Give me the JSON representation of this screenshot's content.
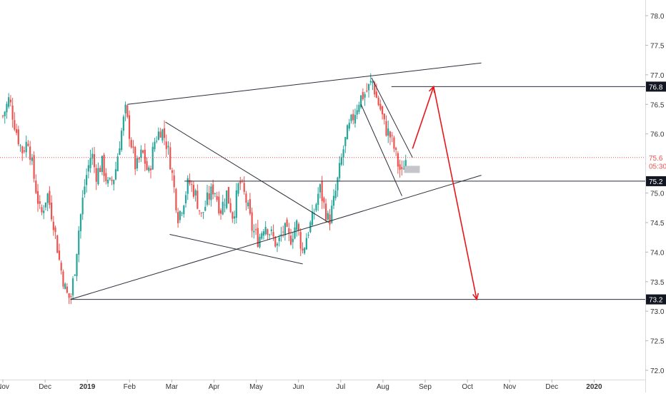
{
  "chart_data": {
    "type": "candlestick",
    "ylim": [
      71.85,
      78.15
    ],
    "y_ticks": [
      "72.0",
      "72.5",
      "73.0",
      "73.5",
      "74.0",
      "74.5",
      "75.0",
      "75.5",
      "76.0",
      "76.5",
      "77.0",
      "77.5",
      "78.0"
    ],
    "x_ticks": [
      {
        "label": "Nov",
        "month_index": 0
      },
      {
        "label": "Dec",
        "month_index": 1
      },
      {
        "label": "2019",
        "month_index": 2
      },
      {
        "label": "Feb",
        "month_index": 3
      },
      {
        "label": "Mar",
        "month_index": 4
      },
      {
        "label": "Apr",
        "month_index": 5
      },
      {
        "label": "May",
        "month_index": 6
      },
      {
        "label": "Jun",
        "month_index": 7
      },
      {
        "label": "Jul",
        "month_index": 8
      },
      {
        "label": "Aug",
        "month_index": 9
      },
      {
        "label": "Sep",
        "month_index": 10
      },
      {
        "label": "Oct",
        "month_index": 11
      },
      {
        "label": "Nov",
        "month_index": 12
      },
      {
        "label": "Dec",
        "month_index": 13
      },
      {
        "label": "2020",
        "month_index": 14
      }
    ],
    "price_path": [
      [
        0.0,
        76.3
      ],
      [
        0.15,
        76.6
      ],
      [
        0.3,
        76.1
      ],
      [
        0.45,
        75.7
      ],
      [
        0.6,
        75.9
      ],
      [
        0.75,
        75.2
      ],
      [
        0.9,
        74.6
      ],
      [
        1.05,
        75.0
      ],
      [
        1.2,
        74.5
      ],
      [
        1.35,
        73.8
      ],
      [
        1.5,
        73.3
      ],
      [
        1.6,
        73.2
      ],
      [
        1.7,
        73.7
      ],
      [
        1.8,
        74.4
      ],
      [
        1.95,
        75.2
      ],
      [
        2.1,
        75.7
      ],
      [
        2.2,
        75.3
      ],
      [
        2.35,
        75.5
      ],
      [
        2.5,
        75.1
      ],
      [
        2.65,
        75.3
      ],
      [
        2.75,
        75.8
      ],
      [
        2.9,
        76.4
      ],
      [
        3.0,
        76.0
      ],
      [
        3.15,
        75.4
      ],
      [
        3.3,
        75.7
      ],
      [
        3.45,
        75.3
      ],
      [
        3.6,
        75.9
      ],
      [
        3.75,
        76.1
      ],
      [
        3.85,
        75.9
      ],
      [
        3.95,
        75.6
      ],
      [
        4.05,
        75.1
      ],
      [
        4.15,
        74.6
      ],
      [
        4.25,
        74.8
      ],
      [
        4.4,
        75.2
      ],
      [
        4.55,
        75.0
      ],
      [
        4.7,
        74.6
      ],
      [
        4.85,
        74.9
      ],
      [
        5.0,
        75.1
      ],
      [
        5.15,
        74.7
      ],
      [
        5.3,
        75.0
      ],
      [
        5.45,
        74.6
      ],
      [
        5.6,
        75.2
      ],
      [
        5.75,
        74.9
      ],
      [
        5.9,
        74.4
      ],
      [
        6.05,
        74.2
      ],
      [
        6.2,
        74.5
      ],
      [
        6.35,
        74.3
      ],
      [
        6.5,
        74.1
      ],
      [
        6.65,
        74.4
      ],
      [
        6.8,
        74.2
      ],
      [
        6.95,
        74.5
      ],
      [
        7.1,
        74.0
      ],
      [
        7.2,
        74.3
      ],
      [
        7.35,
        74.6
      ],
      [
        7.5,
        75.1
      ],
      [
        7.6,
        74.8
      ],
      [
        7.72,
        74.5
      ],
      [
        7.85,
        74.9
      ],
      [
        7.95,
        75.3
      ],
      [
        8.05,
        75.7
      ],
      [
        8.15,
        76.0
      ],
      [
        8.3,
        76.3
      ],
      [
        8.45,
        76.6
      ],
      [
        8.6,
        76.7
      ],
      [
        8.75,
        76.9
      ],
      [
        8.85,
        76.6
      ],
      [
        8.95,
        76.4
      ],
      [
        9.05,
        76.1
      ],
      [
        9.15,
        76.0
      ],
      [
        9.25,
        75.8
      ],
      [
        9.35,
        75.5
      ],
      [
        9.45,
        75.3
      ],
      [
        9.52,
        75.6
      ],
      [
        9.58,
        75.5
      ]
    ],
    "price_labels": [
      {
        "text": "76.8",
        "value": 76.8,
        "style": "dark"
      },
      {
        "text": "75.6",
        "value": 75.6,
        "style": "red"
      },
      {
        "text": "05:30:",
        "value": 75.46,
        "style": "red"
      },
      {
        "text": "75.2",
        "value": 75.2,
        "style": "dark"
      },
      {
        "text": "73.2",
        "value": 73.2,
        "style": "dark"
      }
    ],
    "current_price": 75.6,
    "horizontal_levels": [
      {
        "value": 76.8,
        "from": 9.2
      },
      {
        "value": 75.2,
        "from": 4.3
      },
      {
        "value": 73.2,
        "from": 1.6
      }
    ],
    "trendlines": [
      {
        "from": [
          2.95,
          76.5
        ],
        "to": [
          11.33,
          77.2
        ]
      },
      {
        "from": [
          1.6,
          73.2
        ],
        "to": [
          11.33,
          75.3
        ]
      },
      {
        "from": [
          3.85,
          76.2
        ],
        "to": [
          7.72,
          74.5
        ]
      },
      {
        "from": [
          3.95,
          74.3
        ],
        "to": [
          7.1,
          73.8
        ]
      },
      {
        "from": [
          8.73,
          76.95
        ],
        "to": [
          9.7,
          75.6
        ]
      },
      {
        "from": [
          8.48,
          76.5
        ],
        "to": [
          9.45,
          74.95
        ]
      }
    ],
    "projection_arrows": [
      {
        "points": [
          [
            9.7,
            75.75
          ],
          [
            10.2,
            76.8
          ]
        ]
      },
      {
        "points": [
          [
            10.2,
            76.8
          ],
          [
            11.22,
            73.2
          ]
        ]
      }
    ],
    "grid": false,
    "colors": {
      "up": "#26a69a",
      "down": "#ef5350",
      "arrow": "#e8161b",
      "current_price_line": "#ef5350",
      "label_dark": "#131722",
      "trendline": "#2a2e39",
      "axis_text": "#333333"
    }
  }
}
